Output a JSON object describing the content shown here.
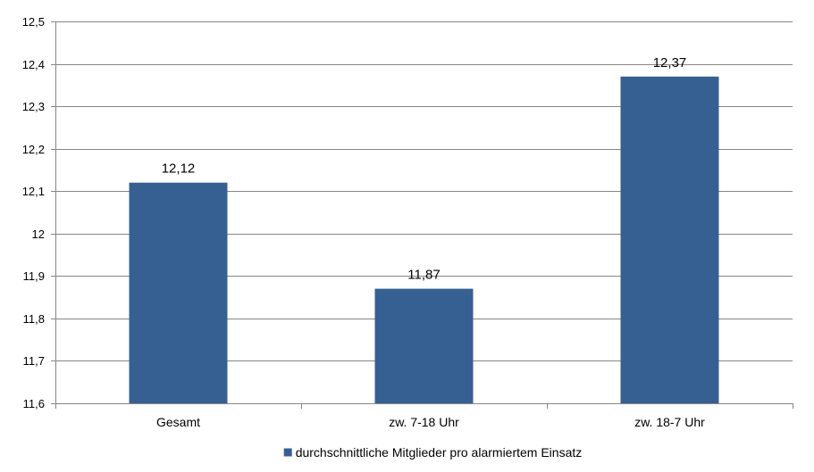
{
  "chart_data": {
    "type": "bar",
    "categories": [
      "Gesamt",
      "zw. 7-18 Uhr",
      "zw. 18-7 Uhr"
    ],
    "series": [
      {
        "name": "durchschnittliche Mitglieder pro alarmiertem Einsatz",
        "values": [
          12.12,
          11.87,
          12.37
        ],
        "data_labels": [
          "12,12",
          "11,87",
          "12,37"
        ]
      }
    ],
    "ylim": [
      11.6,
      12.5
    ],
    "y_ticks": [
      11.6,
      11.7,
      11.8,
      11.9,
      12.0,
      12.1,
      12.2,
      12.3,
      12.4,
      12.5
    ],
    "y_tick_labels": [
      "11,6",
      "11,7",
      "11,8",
      "11,9",
      "12",
      "12,1",
      "12,2",
      "12,3",
      "12,4",
      "12,5"
    ],
    "grid": true,
    "legend_position": "bottom",
    "bar_color": "#376092",
    "grid_color": "#868686"
  }
}
